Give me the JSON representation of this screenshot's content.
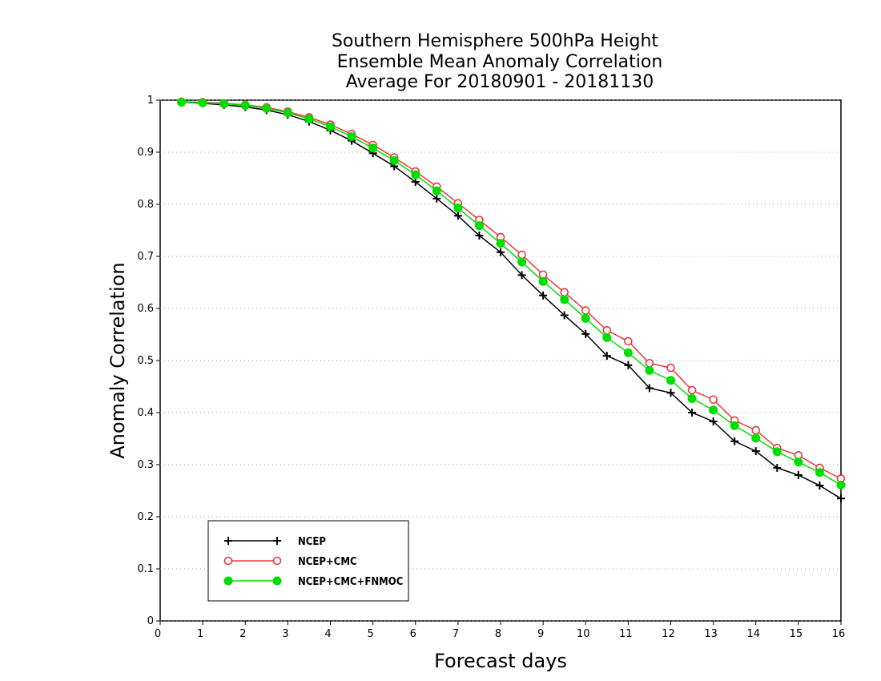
{
  "chart_data": {
    "type": "line",
    "title_lines": [
      "Southern Hemisphere 500hPa Height",
      "Ensemble Mean Anomaly Correlation",
      "Average For 20180901 - 20181130"
    ],
    "xlabel": "Forecast days",
    "ylabel": "Anomaly Correlation",
    "xlim": [
      0,
      16
    ],
    "ylim": [
      0,
      1
    ],
    "x_ticks": [
      "0",
      "1",
      "2",
      "3",
      "4",
      "5",
      "6",
      "7",
      "8",
      "9",
      "10",
      "11",
      "12",
      "13",
      "14",
      "15",
      "16"
    ],
    "y_ticks": [
      "0",
      "0.1",
      "0.2",
      "0.3",
      "0.4",
      "0.5",
      "0.6",
      "0.7",
      "0.8",
      "0.9",
      "1"
    ],
    "grid": "horizontal dotted",
    "legend_position": "bottom-left",
    "x": [
      0.5,
      1,
      1.5,
      2,
      2.5,
      3,
      3.5,
      4,
      4.5,
      5,
      5.5,
      6,
      6.5,
      7,
      7.5,
      8,
      8.5,
      9,
      9.5,
      10,
      10.5,
      11,
      11.5,
      12,
      12.5,
      13,
      13.5,
      14,
      14.5,
      15,
      15.5,
      16
    ],
    "series": [
      {
        "name": "NCEP",
        "color": "#000000",
        "marker": "plus",
        "values": [
          0.996,
          0.994,
          0.991,
          0.987,
          0.981,
          0.972,
          0.959,
          0.942,
          0.922,
          0.898,
          0.873,
          0.843,
          0.811,
          0.778,
          0.74,
          0.708,
          0.664,
          0.625,
          0.587,
          0.551,
          0.509,
          0.491,
          0.447,
          0.438,
          0.4,
          0.383,
          0.345,
          0.326,
          0.294,
          0.28,
          0.26,
          0.235
        ]
      },
      {
        "name": "NCEP+CMC",
        "color": "#e8383d",
        "marker": "open-circle",
        "values": [
          0.997,
          0.996,
          0.994,
          0.991,
          0.986,
          0.978,
          0.967,
          0.953,
          0.935,
          0.914,
          0.89,
          0.863,
          0.834,
          0.802,
          0.77,
          0.737,
          0.703,
          0.665,
          0.631,
          0.596,
          0.558,
          0.537,
          0.495,
          0.486,
          0.443,
          0.425,
          0.385,
          0.366,
          0.332,
          0.318,
          0.294,
          0.273
        ]
      },
      {
        "name": "NCEP+CMC+FNMOC",
        "color": "#00dd00",
        "marker": "filled-circle",
        "values": [
          0.996,
          0.995,
          0.993,
          0.99,
          0.984,
          0.976,
          0.964,
          0.949,
          0.93,
          0.908,
          0.884,
          0.857,
          0.826,
          0.793,
          0.759,
          0.725,
          0.689,
          0.652,
          0.617,
          0.581,
          0.544,
          0.515,
          0.481,
          0.462,
          0.427,
          0.405,
          0.375,
          0.351,
          0.325,
          0.305,
          0.285,
          0.261
        ]
      }
    ]
  }
}
